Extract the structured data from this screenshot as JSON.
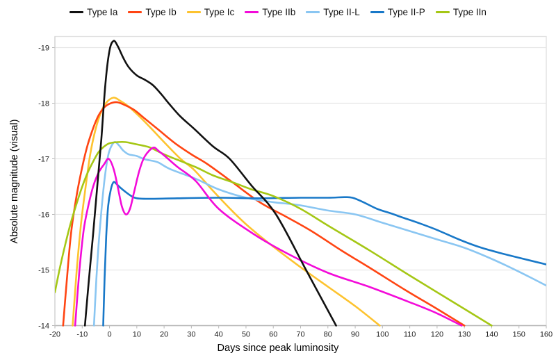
{
  "chart_data": {
    "type": "line",
    "title": "",
    "xlabel": "Days since peak luminosity",
    "ylabel": "Absolute magnitude (visual)",
    "xlim": [
      -20,
      160
    ],
    "ylim": [
      -14,
      -19.2
    ],
    "y_axis_inverted": true,
    "xticks": [
      -20,
      -10,
      0,
      10,
      20,
      30,
      40,
      50,
      60,
      70,
      80,
      90,
      100,
      110,
      120,
      130,
      140,
      150,
      160
    ],
    "yticks": [
      -19,
      -18,
      -17,
      -16,
      -15,
      -14
    ],
    "grid": "horizontal-only",
    "legend_position": "top-center",
    "plot_border_color": "#e2e2e2",
    "gridline_color": "#e6e6e6",
    "axis_line_color": "#b7b7b7",
    "series": [
      {
        "name": "Type Ia",
        "color": "#111111",
        "points": [
          [
            -9,
            -14
          ],
          [
            -7.5,
            -14.85
          ],
          [
            -6,
            -15.65
          ],
          [
            -4.5,
            -16.5
          ],
          [
            -3,
            -17.35
          ],
          [
            -1.5,
            -18.35
          ],
          [
            0,
            -18.95
          ],
          [
            1.5,
            -19.12
          ],
          [
            3,
            -19.03
          ],
          [
            5,
            -18.82
          ],
          [
            7,
            -18.65
          ],
          [
            10,
            -18.5
          ],
          [
            13,
            -18.42
          ],
          [
            16,
            -18.32
          ],
          [
            19,
            -18.16
          ],
          [
            22,
            -17.98
          ],
          [
            26,
            -17.76
          ],
          [
            31,
            -17.54
          ],
          [
            38,
            -17.22
          ],
          [
            44,
            -17.0
          ],
          [
            52,
            -16.52
          ],
          [
            61,
            -16.0
          ],
          [
            72,
            -15.0
          ],
          [
            83,
            -14.0
          ]
        ]
      },
      {
        "name": "Type Ib",
        "color": "#ff4513",
        "points": [
          [
            -17,
            -14
          ],
          [
            -15.5,
            -14.9
          ],
          [
            -14,
            -15.7
          ],
          [
            -12,
            -16.35
          ],
          [
            -10,
            -16.85
          ],
          [
            -8,
            -17.25
          ],
          [
            -6,
            -17.55
          ],
          [
            -4,
            -17.78
          ],
          [
            -2,
            -17.92
          ],
          [
            0,
            -17.99
          ],
          [
            2.5,
            -18.02
          ],
          [
            5,
            -17.98
          ],
          [
            9,
            -17.88
          ],
          [
            13,
            -17.72
          ],
          [
            18,
            -17.52
          ],
          [
            24,
            -17.28
          ],
          [
            30,
            -17.08
          ],
          [
            36,
            -16.9
          ],
          [
            45,
            -16.58
          ],
          [
            55,
            -16.22
          ],
          [
            65,
            -15.95
          ],
          [
            74,
            -15.7
          ],
          [
            85,
            -15.35
          ],
          [
            95,
            -15.05
          ],
          [
            108,
            -14.65
          ],
          [
            120,
            -14.3
          ],
          [
            130,
            -14.0
          ]
        ]
      },
      {
        "name": "Type Ic",
        "color": "#fdc32f",
        "points": [
          [
            -13.5,
            -14
          ],
          [
            -12,
            -15.0
          ],
          [
            -10.5,
            -15.8
          ],
          [
            -9,
            -16.4
          ],
          [
            -7,
            -17.1
          ],
          [
            -5,
            -17.55
          ],
          [
            -3,
            -17.85
          ],
          [
            -1,
            -18.02
          ],
          [
            1.5,
            -18.1
          ],
          [
            4,
            -18.04
          ],
          [
            7,
            -17.94
          ],
          [
            11,
            -17.76
          ],
          [
            15,
            -17.56
          ],
          [
            20,
            -17.3
          ],
          [
            26,
            -17.0
          ],
          [
            31,
            -16.8
          ],
          [
            38,
            -16.42
          ],
          [
            45,
            -16.06
          ],
          [
            51,
            -15.78
          ],
          [
            60,
            -15.42
          ],
          [
            70,
            -15.05
          ],
          [
            80,
            -14.7
          ],
          [
            90,
            -14.35
          ],
          [
            99,
            -14.0
          ]
        ]
      },
      {
        "name": "Type IIb",
        "color": "#f30bd9",
        "points": [
          [
            -12.6,
            -14
          ],
          [
            -11,
            -15.0
          ],
          [
            -9.5,
            -15.7
          ],
          [
            -8,
            -16.1
          ],
          [
            -6,
            -16.5
          ],
          [
            -4,
            -16.75
          ],
          [
            -2,
            -16.9
          ],
          [
            -0.3,
            -17.0
          ],
          [
            1.5,
            -16.82
          ],
          [
            3,
            -16.5
          ],
          [
            4.5,
            -16.15
          ],
          [
            6,
            -16.0
          ],
          [
            7.5,
            -16.1
          ],
          [
            9,
            -16.4
          ],
          [
            11,
            -16.8
          ],
          [
            13,
            -17.05
          ],
          [
            16,
            -17.2
          ],
          [
            18,
            -17.14
          ],
          [
            21,
            -17.02
          ],
          [
            25,
            -16.85
          ],
          [
            31.6,
            -16.6
          ],
          [
            40,
            -16.1
          ],
          [
            52.7,
            -15.65
          ],
          [
            65,
            -15.3
          ],
          [
            80,
            -14.95
          ],
          [
            95,
            -14.7
          ],
          [
            110,
            -14.42
          ],
          [
            120,
            -14.22
          ],
          [
            129,
            -14.0
          ]
        ]
      },
      {
        "name": "Type II-L",
        "color": "#8ac6f2",
        "points": [
          [
            -5.7,
            -14
          ],
          [
            -4.8,
            -14.85
          ],
          [
            -4,
            -15.45
          ],
          [
            -3,
            -16.05
          ],
          [
            -2,
            -16.55
          ],
          [
            -1,
            -16.92
          ],
          [
            0,
            -17.15
          ],
          [
            1.8,
            -17.3
          ],
          [
            3.5,
            -17.24
          ],
          [
            5,
            -17.15
          ],
          [
            7,
            -17.08
          ],
          [
            10,
            -17.05
          ],
          [
            13,
            -16.99
          ],
          [
            17.6,
            -16.94
          ],
          [
            22,
            -16.82
          ],
          [
            31.6,
            -16.64
          ],
          [
            40,
            -16.45
          ],
          [
            50,
            -16.3
          ],
          [
            60,
            -16.22
          ],
          [
            69,
            -16.17
          ],
          [
            80,
            -16.07
          ],
          [
            90,
            -16.0
          ],
          [
            100,
            -15.85
          ],
          [
            110,
            -15.7
          ],
          [
            120,
            -15.55
          ],
          [
            130,
            -15.4
          ],
          [
            140,
            -15.2
          ],
          [
            150,
            -14.97
          ],
          [
            160,
            -14.72
          ]
        ]
      },
      {
        "name": "Type II-P",
        "color": "#1878c8",
        "points": [
          [
            -2.3,
            -14
          ],
          [
            -1.8,
            -14.85
          ],
          [
            -1.2,
            -15.6
          ],
          [
            -0.5,
            -16.15
          ],
          [
            0.5,
            -16.45
          ],
          [
            1.5,
            -16.58
          ],
          [
            2.5,
            -16.55
          ],
          [
            4,
            -16.48
          ],
          [
            6,
            -16.4
          ],
          [
            8,
            -16.33
          ],
          [
            10,
            -16.29
          ],
          [
            15,
            -16.28
          ],
          [
            25,
            -16.29
          ],
          [
            40,
            -16.3
          ],
          [
            55,
            -16.29
          ],
          [
            70,
            -16.3
          ],
          [
            80,
            -16.3
          ],
          [
            86,
            -16.31
          ],
          [
            89,
            -16.3
          ],
          [
            93,
            -16.22
          ],
          [
            98,
            -16.1
          ],
          [
            103,
            -16.02
          ],
          [
            107,
            -15.95
          ],
          [
            113,
            -15.85
          ],
          [
            120,
            -15.72
          ],
          [
            128,
            -15.55
          ],
          [
            135,
            -15.42
          ],
          [
            142,
            -15.32
          ],
          [
            150,
            -15.22
          ],
          [
            160,
            -15.1
          ]
        ]
      },
      {
        "name": "Type IIn",
        "color": "#a5c715",
        "points": [
          [
            -20,
            -14.6
          ],
          [
            -18,
            -15.08
          ],
          [
            -16,
            -15.5
          ],
          [
            -14,
            -15.88
          ],
          [
            -12,
            -16.2
          ],
          [
            -10,
            -16.5
          ],
          [
            -8,
            -16.75
          ],
          [
            -6,
            -16.95
          ],
          [
            -4,
            -17.12
          ],
          [
            -2,
            -17.22
          ],
          [
            0,
            -17.28
          ],
          [
            3,
            -17.3
          ],
          [
            6,
            -17.3
          ],
          [
            9,
            -17.27
          ],
          [
            12,
            -17.24
          ],
          [
            15,
            -17.2
          ],
          [
            20,
            -17.08
          ],
          [
            25,
            -16.98
          ],
          [
            31.6,
            -16.85
          ],
          [
            38,
            -16.7
          ],
          [
            45,
            -16.58
          ],
          [
            52,
            -16.45
          ],
          [
            60,
            -16.33
          ],
          [
            70,
            -16.1
          ],
          [
            80,
            -15.8
          ],
          [
            95,
            -15.36
          ],
          [
            110,
            -14.9
          ],
          [
            125,
            -14.45
          ],
          [
            140,
            -14.0
          ]
        ]
      }
    ],
    "draw_order": [
      2,
      1,
      4,
      5,
      6,
      3,
      0
    ]
  }
}
